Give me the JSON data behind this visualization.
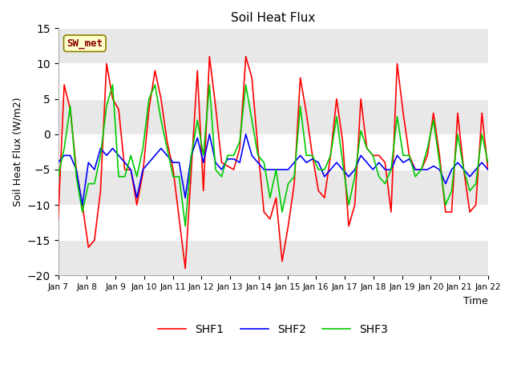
{
  "title": "Soil Heat Flux",
  "ylabel": "Soil Heat Flux (W/m2)",
  "xlabel": "Time",
  "annotation": "SW_met",
  "ylim": [
    -20,
    15
  ],
  "yticks": [
    -20,
    -15,
    -10,
    -5,
    0,
    5,
    10,
    15
  ],
  "xtick_labels": [
    "Jan 7",
    "Jan 8",
    "Jan 9",
    "Jan 10",
    "Jan 11",
    "Jan 12",
    "Jan 13",
    "Jan 14",
    "Jan 15",
    "Jan 16",
    "Jan 17",
    "Jan 18",
    "Jan 19",
    "Jan 20",
    "Jan 21",
    "Jan 22"
  ],
  "legend": [
    "SHF1",
    "SHF2",
    "SHF3"
  ],
  "line_colors": [
    "#ff0000",
    "#0000ff",
    "#00cc00"
  ],
  "background_color": "#ffffff",
  "plot_bg_color": "#ffffff",
  "band_color": "#e8e8e8",
  "grid_color": "#d0d0d0",
  "annotation_text_color": "#8b0000",
  "annotation_bg": "#ffffcc",
  "annotation_edge": "#8b8000",
  "shf1": [
    -12,
    7,
    3.5,
    -5,
    -10,
    -16,
    -15,
    -8,
    10,
    5,
    3.5,
    -5,
    -5,
    -10,
    -5.5,
    3.5,
    9,
    5,
    -1,
    -5,
    -12,
    -19,
    -5,
    9,
    -8,
    11,
    4,
    -4,
    -4.5,
    -5,
    -2,
    11,
    8,
    -2,
    -11,
    -12,
    -9,
    -18,
    -13,
    -7,
    8,
    3,
    -3,
    -8,
    -9,
    -3,
    5,
    -1,
    -13,
    -10,
    5,
    -2,
    -3,
    -3,
    -4,
    -11,
    10,
    3,
    -3,
    -5,
    -5,
    -3,
    3,
    -3,
    -11,
    -11,
    3,
    -5,
    -11,
    -10,
    3,
    -5
  ],
  "shf2": [
    -4,
    -3,
    -3,
    -5,
    -10,
    -4,
    -5,
    -2,
    -3,
    -2,
    -3,
    -4,
    -5,
    -9,
    -5,
    -4,
    -3,
    -2,
    -3,
    -4,
    -4,
    -9,
    -3,
    -0.5,
    -4,
    0,
    -4,
    -5,
    -3.5,
    -3.5,
    -4,
    0,
    -3,
    -4,
    -5,
    -5,
    -5,
    -5,
    -5,
    -4,
    -3,
    -4,
    -3.5,
    -4,
    -6,
    -5,
    -4,
    -5,
    -6,
    -5,
    -3,
    -4,
    -5,
    -4,
    -5,
    -5,
    -3,
    -4,
    -3.5,
    -5,
    -5,
    -5,
    -4.5,
    -5,
    -7,
    -5,
    -4,
    -5,
    -6,
    -5,
    -4,
    -5
  ],
  "shf3": [
    -6,
    -2,
    4,
    -6,
    -11,
    -7,
    -7,
    -3,
    4,
    7,
    -6,
    -6,
    -3,
    -6,
    -2,
    5,
    7,
    2,
    -2,
    -6,
    -6,
    -13,
    -3,
    2,
    -3,
    7,
    -5,
    -6,
    -3,
    -3,
    -1,
    7,
    2,
    -3,
    -4,
    -9,
    -5,
    -11,
    -7,
    -6,
    4,
    -3,
    -3,
    -5,
    -5,
    -3,
    2.5,
    -4,
    -10,
    -6,
    0.5,
    -2,
    -3,
    -6,
    -7,
    -5,
    2.5,
    -3,
    -3,
    -6,
    -5,
    -2,
    2,
    -4,
    -10,
    -8,
    0,
    -5,
    -8,
    -7,
    0,
    -4
  ]
}
